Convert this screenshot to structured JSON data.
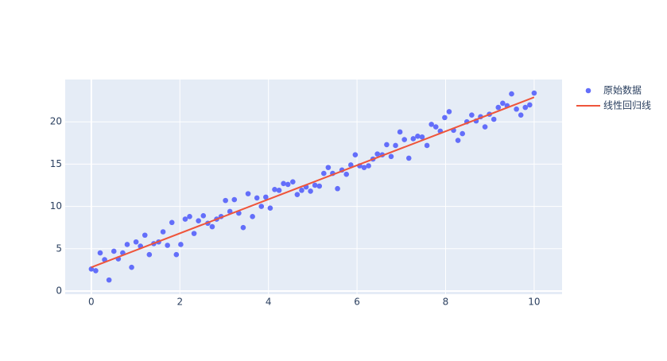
{
  "chart_data": {
    "type": "scatter",
    "grid": true,
    "legend_position": "right",
    "plot_background": "#e5ecf6",
    "xlim": [
      -0.59,
      10.63
    ],
    "xticks": [
      0,
      2,
      4,
      6,
      8,
      10
    ],
    "ylim": [
      -0.38,
      25
    ],
    "yticks": [
      0,
      5,
      10,
      15,
      20
    ],
    "series": [
      {
        "name": "原始数据",
        "mode": "markers",
        "color": "#636efa",
        "x": [
          0,
          0.1,
          0.2,
          0.3,
          0.4,
          0.51,
          0.61,
          0.71,
          0.81,
          0.91,
          1.01,
          1.11,
          1.21,
          1.31,
          1.41,
          1.52,
          1.62,
          1.72,
          1.82,
          1.92,
          2.02,
          2.12,
          2.22,
          2.32,
          2.42,
          2.53,
          2.63,
          2.73,
          2.83,
          2.93,
          3.03,
          3.13,
          3.23,
          3.33,
          3.43,
          3.54,
          3.64,
          3.74,
          3.84,
          3.94,
          4.04,
          4.14,
          4.24,
          4.34,
          4.44,
          4.55,
          4.65,
          4.75,
          4.85,
          4.95,
          5.05,
          5.15,
          5.25,
          5.35,
          5.45,
          5.56,
          5.66,
          5.76,
          5.86,
          5.96,
          6.06,
          6.16,
          6.26,
          6.36,
          6.46,
          6.57,
          6.67,
          6.77,
          6.87,
          6.97,
          7.07,
          7.17,
          7.27,
          7.37,
          7.47,
          7.58,
          7.68,
          7.78,
          7.88,
          7.98,
          8.08,
          8.18,
          8.28,
          8.38,
          8.48,
          8.59,
          8.69,
          8.79,
          8.89,
          8.99,
          9.09,
          9.19,
          9.29,
          9.39,
          9.49,
          9.6,
          9.7,
          9.8,
          9.9,
          10
        ],
        "values": [
          2.6,
          2.4,
          4.5,
          3.7,
          1.3,
          4.7,
          3.8,
          4.5,
          5.5,
          2.8,
          5.8,
          5.3,
          6.6,
          4.3,
          5.6,
          5.8,
          7.0,
          5.4,
          8.1,
          4.3,
          5.5,
          8.5,
          8.8,
          6.8,
          8.3,
          8.9,
          8.0,
          7.6,
          8.5,
          8.8,
          10.7,
          9.4,
          10.8,
          9.2,
          7.5,
          11.5,
          8.8,
          11.0,
          10.0,
          11.1,
          9.8,
          12.0,
          11.9,
          12.7,
          12.6,
          12.9,
          11.4,
          11.9,
          12.3,
          11.8,
          12.5,
          12.4,
          13.9,
          14.6,
          13.9,
          12.1,
          14.3,
          13.8,
          14.9,
          16.1,
          14.8,
          14.6,
          14.8,
          15.6,
          16.2,
          16.1,
          17.3,
          15.9,
          17.2,
          18.8,
          17.9,
          15.7,
          18.0,
          18.3,
          18.2,
          17.2,
          19.7,
          19.4,
          18.9,
          20.5,
          21.2,
          19.0,
          17.8,
          18.6,
          20.0,
          20.8,
          20.1,
          20.6,
          19.4,
          20.9,
          20.3,
          21.7,
          22.2,
          21.9,
          23.3,
          21.5,
          20.8,
          21.7,
          22.0,
          23.4
        ]
      },
      {
        "name": "线性回归线",
        "mode": "lines",
        "color": "#ef553b",
        "x": [
          0,
          10
        ],
        "values": [
          2.8,
          22.9
        ]
      }
    ]
  }
}
